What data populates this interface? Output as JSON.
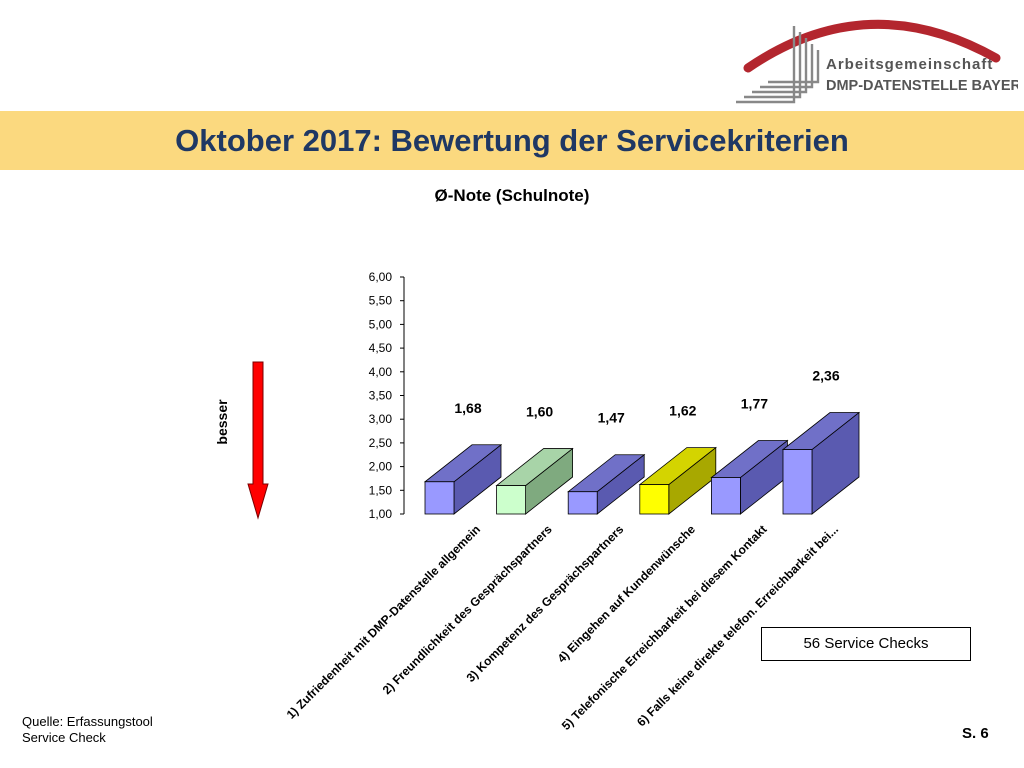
{
  "logo": {
    "line1": "Arbeitsgemeinschaft",
    "line2": "DMP-DATENSTELLE BAYERN",
    "colors": {
      "arc": "#b3262e",
      "lines": "#888888",
      "text": "#555555"
    }
  },
  "header": {
    "title": "Oktober 2017: Bewertung der Servicekriterien",
    "band_color": "#fbd97f",
    "title_color": "#1f3864"
  },
  "chart_data": {
    "type": "bar",
    "style": "3d-columns",
    "title": "Ø-Note (Schulnote)",
    "categories": [
      "1) Zufriedenheit mit DMP-Datenstelle allgemein",
      "2) Freundlichkeit des Gesprächspartners",
      "3) Kompetenz des Gesprächspartners",
      "4) Eingehen auf Kundenwünsche",
      "5) Telefonische Erreichbarkeit bei diesem Kontakt",
      "6) Falls keine direkte telefon. Erreichbarkeit bei..."
    ],
    "values": [
      1.68,
      1.6,
      1.47,
      1.62,
      1.77,
      2.36
    ],
    "value_labels": [
      "1,68",
      "1,60",
      "1,47",
      "1,62",
      "1,77",
      "2,36"
    ],
    "ylim": [
      1.0,
      6.0
    ],
    "yticks": [
      "1,00",
      "1,50",
      "2,00",
      "2,50",
      "3,00",
      "3,50",
      "4,00",
      "4,50",
      "5,00",
      "5,50",
      "6,00"
    ],
    "colors": [
      {
        "front": "#9999ff",
        "side": "#5a5ab0",
        "top": "#7070c8"
      },
      {
        "front": "#ccffcc",
        "side": "#7faa7f",
        "top": "#a8d4a8"
      },
      {
        "front": "#9999ff",
        "side": "#5a5ab0",
        "top": "#7070c8"
      },
      {
        "front": "#ffff00",
        "side": "#a8a800",
        "top": "#d4d400"
      },
      {
        "front": "#9999ff",
        "side": "#5a5ab0",
        "top": "#7070c8"
      },
      {
        "front": "#9999ff",
        "side": "#5a5ab0",
        "top": "#7070c8"
      }
    ],
    "grid": false,
    "legend": "none"
  },
  "arrow": {
    "label": "besser",
    "direction": "down",
    "color": "#ff0000"
  },
  "service_checks": "56 Service Checks",
  "footer": {
    "source_line1": "Quelle: Erfassungstool",
    "source_line2": "Service Check",
    "page": "S. 6"
  }
}
